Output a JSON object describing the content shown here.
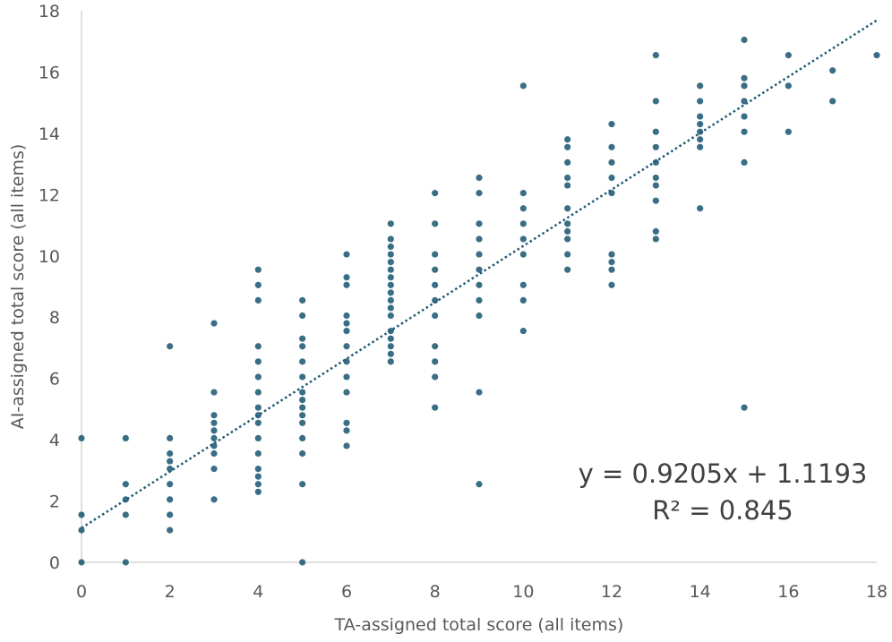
{
  "chart_data": {
    "type": "scatter",
    "xlabel": "TA-assigned total score (all items)",
    "ylabel": "AI-assigned total score (all items)",
    "xlim": [
      0,
      18
    ],
    "ylim": [
      0,
      18
    ],
    "x_ticks": [
      "0",
      "2",
      "4",
      "6",
      "8",
      "10",
      "12",
      "14",
      "16",
      "18"
    ],
    "y_ticks": [
      "0",
      "2",
      "4",
      "6",
      "8",
      "10",
      "12",
      "14",
      "16",
      "18"
    ],
    "grid": false,
    "legend": "none",
    "marker_color": "#1f5a73",
    "trendline": {
      "type": "linear",
      "slope": 0.9205,
      "intercept": 1.1193,
      "style": "dotted",
      "color": "#1f5a73",
      "equation_label": "y = 0.9205x + 1.1193",
      "r2_label": "R² = 0.845"
    },
    "points": [
      [
        0,
        0
      ],
      [
        0,
        1.05
      ],
      [
        0,
        1.55
      ],
      [
        0,
        4.05
      ],
      [
        1,
        0
      ],
      [
        1,
        1.55
      ],
      [
        1,
        2.05
      ],
      [
        1,
        2.55
      ],
      [
        1,
        4.05
      ],
      [
        2,
        1.05
      ],
      [
        2,
        1.55
      ],
      [
        2,
        2.05
      ],
      [
        2,
        2.55
      ],
      [
        2,
        3.05
      ],
      [
        2,
        3.3
      ],
      [
        2,
        3.55
      ],
      [
        2,
        4.05
      ],
      [
        2,
        7.05
      ],
      [
        3,
        2.05
      ],
      [
        3,
        3.05
      ],
      [
        3,
        3.55
      ],
      [
        3,
        3.8
      ],
      [
        3,
        4.05
      ],
      [
        3,
        4.3
      ],
      [
        3,
        4.55
      ],
      [
        3,
        4.8
      ],
      [
        3,
        5.55
      ],
      [
        3,
        7.8
      ],
      [
        4,
        2.3
      ],
      [
        4,
        2.55
      ],
      [
        4,
        2.8
      ],
      [
        4,
        3.05
      ],
      [
        4,
        3.55
      ],
      [
        4,
        4.05
      ],
      [
        4,
        4.55
      ],
      [
        4,
        4.8
      ],
      [
        4,
        5.05
      ],
      [
        4,
        5.55
      ],
      [
        4,
        6.05
      ],
      [
        4,
        6.55
      ],
      [
        4,
        7.05
      ],
      [
        4,
        8.55
      ],
      [
        4,
        9.05
      ],
      [
        4,
        9.55
      ],
      [
        5,
        0
      ],
      [
        5,
        2.55
      ],
      [
        5,
        3.55
      ],
      [
        5,
        4.05
      ],
      [
        5,
        4.55
      ],
      [
        5,
        4.8
      ],
      [
        5,
        5.05
      ],
      [
        5,
        5.3
      ],
      [
        5,
        5.55
      ],
      [
        5,
        6.05
      ],
      [
        5,
        6.55
      ],
      [
        5,
        7.05
      ],
      [
        5,
        7.3
      ],
      [
        5,
        8.05
      ],
      [
        5,
        8.55
      ],
      [
        6,
        3.8
      ],
      [
        6,
        4.3
      ],
      [
        6,
        4.55
      ],
      [
        6,
        5.55
      ],
      [
        6,
        6.05
      ],
      [
        6,
        6.55
      ],
      [
        6,
        7.05
      ],
      [
        6,
        7.55
      ],
      [
        6,
        7.8
      ],
      [
        6,
        8.05
      ],
      [
        6,
        9.05
      ],
      [
        6,
        9.3
      ],
      [
        6,
        10.05
      ],
      [
        7,
        6.55
      ],
      [
        7,
        6.8
      ],
      [
        7,
        7.05
      ],
      [
        7,
        7.3
      ],
      [
        7,
        7.55
      ],
      [
        7,
        8.05
      ],
      [
        7,
        8.3
      ],
      [
        7,
        8.55
      ],
      [
        7,
        8.8
      ],
      [
        7,
        9.05
      ],
      [
        7,
        9.3
      ],
      [
        7,
        9.55
      ],
      [
        7,
        9.8
      ],
      [
        7,
        10.05
      ],
      [
        7,
        10.3
      ],
      [
        7,
        10.55
      ],
      [
        7,
        11.05
      ],
      [
        8,
        5.05
      ],
      [
        8,
        6.05
      ],
      [
        8,
        6.55
      ],
      [
        8,
        7.05
      ],
      [
        8,
        8.05
      ],
      [
        8,
        8.55
      ],
      [
        8,
        9.05
      ],
      [
        8,
        9.55
      ],
      [
        8,
        10.05
      ],
      [
        8,
        11.05
      ],
      [
        8,
        12.05
      ],
      [
        9,
        2.55
      ],
      [
        9,
        5.55
      ],
      [
        9,
        8.05
      ],
      [
        9,
        8.55
      ],
      [
        9,
        9.05
      ],
      [
        9,
        9.55
      ],
      [
        9,
        10.05
      ],
      [
        9,
        10.55
      ],
      [
        9,
        11.05
      ],
      [
        9,
        12.05
      ],
      [
        9,
        12.55
      ],
      [
        10,
        7.55
      ],
      [
        10,
        8.55
      ],
      [
        10,
        9.05
      ],
      [
        10,
        10.05
      ],
      [
        10,
        10.55
      ],
      [
        10,
        11.05
      ],
      [
        10,
        11.55
      ],
      [
        10,
        12.05
      ],
      [
        10,
        15.55
      ],
      [
        11,
        9.55
      ],
      [
        11,
        10.05
      ],
      [
        11,
        10.55
      ],
      [
        11,
        10.8
      ],
      [
        11,
        11.05
      ],
      [
        11,
        11.55
      ],
      [
        11,
        12.3
      ],
      [
        11,
        12.55
      ],
      [
        11,
        13.05
      ],
      [
        11,
        13.55
      ],
      [
        11,
        13.8
      ],
      [
        12,
        9.05
      ],
      [
        12,
        9.55
      ],
      [
        12,
        9.8
      ],
      [
        12,
        10.05
      ],
      [
        12,
        12.05
      ],
      [
        12,
        12.55
      ],
      [
        12,
        13.05
      ],
      [
        12,
        13.55
      ],
      [
        12,
        14.3
      ],
      [
        13,
        10.55
      ],
      [
        13,
        10.8
      ],
      [
        13,
        11.8
      ],
      [
        13,
        12.3
      ],
      [
        13,
        12.55
      ],
      [
        13,
        13.05
      ],
      [
        13,
        13.55
      ],
      [
        13,
        14.05
      ],
      [
        13,
        15.05
      ],
      [
        13,
        16.55
      ],
      [
        14,
        11.55
      ],
      [
        14,
        13.55
      ],
      [
        14,
        13.8
      ],
      [
        14,
        14.05
      ],
      [
        14,
        14.3
      ],
      [
        14,
        14.55
      ],
      [
        14,
        15.05
      ],
      [
        14,
        15.55
      ],
      [
        15,
        5.05
      ],
      [
        15,
        13.05
      ],
      [
        15,
        14.05
      ],
      [
        15,
        14.55
      ],
      [
        15,
        15.05
      ],
      [
        15,
        15.55
      ],
      [
        15,
        15.8
      ],
      [
        15,
        17.05
      ],
      [
        16,
        14.05
      ],
      [
        16,
        15.55
      ],
      [
        16,
        16.55
      ],
      [
        17,
        15.05
      ],
      [
        17,
        16.05
      ],
      [
        18,
        16.55
      ]
    ]
  }
}
